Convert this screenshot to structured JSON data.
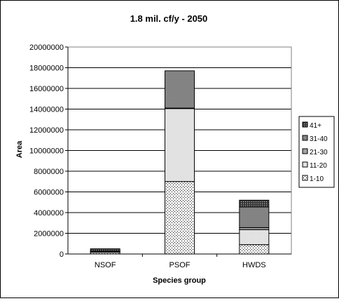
{
  "chart_data": {
    "type": "bar",
    "stacked": true,
    "title": "1.8 mil. cf/y - 2050",
    "xlabel": "Species group",
    "ylabel": "Area",
    "ylim": [
      0,
      20000000
    ],
    "yticks": [
      "0",
      "2000000",
      "4000000",
      "6000000",
      "8000000",
      "10000000",
      "12000000",
      "14000000",
      "16000000",
      "18000000",
      "20000000"
    ],
    "grid": true,
    "legend_position": "right",
    "categories": [
      "NSOF",
      "PSOF",
      "HWDS"
    ],
    "series": [
      {
        "name": "1-10",
        "values": [
          150000,
          7000000,
          900000
        ],
        "pattern": "p1"
      },
      {
        "name": "11-20",
        "values": [
          100000,
          7050000,
          1450000
        ],
        "pattern": "p2"
      },
      {
        "name": "21-30",
        "values": [
          30000,
          50000,
          200000
        ],
        "pattern": "p3"
      },
      {
        "name": "31-40",
        "values": [
          20000,
          3600000,
          2000000
        ],
        "pattern": "p4"
      },
      {
        "name": "41+",
        "values": [
          200000,
          0,
          650000
        ],
        "pattern": "p5"
      }
    ]
  }
}
